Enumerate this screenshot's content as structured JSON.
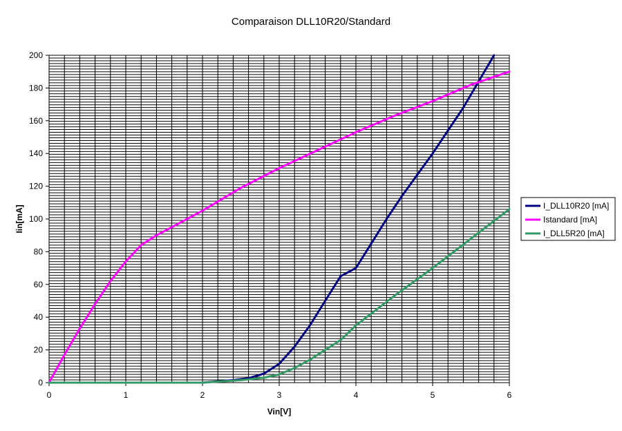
{
  "chart_data": {
    "type": "line",
    "title": "Comparaison DLL10R20/Standard",
    "xlabel": "Vin[V]",
    "ylabel": "Iin[mA]",
    "xlim": [
      0,
      6
    ],
    "ylim": [
      0,
      200
    ],
    "x_ticks": [
      "0",
      "1",
      "2",
      "3",
      "4",
      "5",
      "6"
    ],
    "y_ticks": [
      "0",
      "20",
      "40",
      "60",
      "80",
      "100",
      "120",
      "140",
      "160",
      "180",
      "200"
    ],
    "grid": true,
    "legend_position": "right",
    "series": [
      {
        "name": "I_DLL10R20 [mA]",
        "color": "#000080",
        "points": [
          [
            0,
            0
          ],
          [
            1.4,
            0
          ],
          [
            2,
            0
          ],
          [
            2.2,
            0.8
          ],
          [
            2.4,
            1.5
          ],
          [
            2.6,
            2.7
          ],
          [
            2.8,
            5.5
          ],
          [
            3,
            11.5
          ],
          [
            3.2,
            22
          ],
          [
            3.4,
            35
          ],
          [
            3.6,
            50
          ],
          [
            3.8,
            65
          ],
          [
            4,
            70
          ],
          [
            4.2,
            85
          ],
          [
            4.4,
            100
          ],
          [
            4.6,
            114
          ],
          [
            4.8,
            127
          ],
          [
            5,
            140
          ],
          [
            5.2,
            154
          ],
          [
            5.4,
            168
          ],
          [
            5.6,
            184
          ],
          [
            5.8,
            200
          ]
        ]
      },
      {
        "name": "Istandard [mA]",
        "color": "#ff00ff",
        "points": [
          [
            0,
            0
          ],
          [
            0.2,
            17
          ],
          [
            0.4,
            33
          ],
          [
            0.6,
            48
          ],
          [
            0.8,
            62
          ],
          [
            1,
            74
          ],
          [
            1.2,
            84
          ],
          [
            1.4,
            90
          ],
          [
            1.6,
            95
          ],
          [
            1.8,
            100
          ],
          [
            2,
            105
          ],
          [
            2.5,
            119
          ],
          [
            3,
            131
          ],
          [
            3.5,
            142
          ],
          [
            4,
            153
          ],
          [
            4.5,
            163
          ],
          [
            5,
            172
          ],
          [
            5.5,
            182
          ],
          [
            6,
            190
          ]
        ]
      },
      {
        "name": "I_DLL5R20 [mA]",
        "color": "#339966",
        "points": [
          [
            0,
            0
          ],
          [
            2,
            0
          ],
          [
            2.5,
            1.5
          ],
          [
            2.8,
            3
          ],
          [
            3,
            5
          ],
          [
            3.2,
            9
          ],
          [
            3.4,
            14
          ],
          [
            3.6,
            20
          ],
          [
            3.8,
            26
          ],
          [
            4,
            35
          ],
          [
            4.5,
            53
          ],
          [
            5,
            70
          ],
          [
            5.5,
            88
          ],
          [
            6,
            106
          ]
        ]
      }
    ]
  }
}
